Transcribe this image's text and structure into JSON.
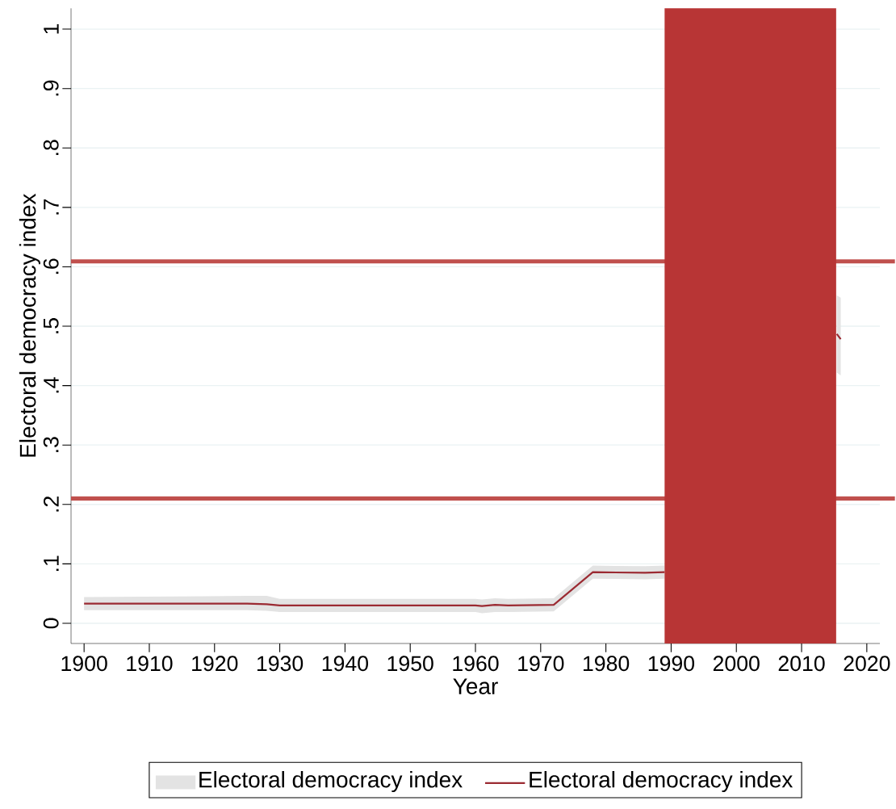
{
  "chart_data": {
    "type": "line",
    "xlabel": "Year",
    "ylabel": "Electoral democracy index",
    "x": [
      1900,
      1925,
      1928,
      1930,
      1960,
      1961,
      1963,
      1965,
      1972,
      1978,
      1986,
      1989,
      1990,
      2015.4,
      2016
    ],
    "series": [
      {
        "name": "Electoral democracy index",
        "color": "#9b2a32",
        "values": [
          0.033,
          0.033,
          0.032,
          0.03,
          0.03,
          0.029,
          0.031,
          0.03,
          0.031,
          0.086,
          0.085,
          0.086,
          null,
          0.487,
          0.478
        ],
        "lower": [
          0.022,
          0.022,
          0.021,
          0.019,
          0.019,
          0.017,
          0.019,
          0.019,
          0.02,
          0.075,
          0.074,
          0.075,
          null,
          0.422,
          0.417
        ],
        "upper": [
          0.044,
          0.046,
          0.046,
          0.041,
          0.041,
          0.04,
          0.042,
          0.041,
          0.042,
          0.097,
          0.096,
          0.097,
          null,
          0.552,
          0.548
        ]
      }
    ],
    "xlim": [
      1898,
      2022
    ],
    "ylim": [
      -0.034,
      1.035
    ],
    "xticks": [
      1900,
      1910,
      1920,
      1930,
      1940,
      1950,
      1960,
      1970,
      1980,
      1990,
      2000,
      2010,
      2020
    ],
    "yticks": [
      0,
      {
        "value": 0.1,
        "label": ".1"
      },
      {
        "value": 0.2,
        "label": ".2"
      },
      {
        "value": 0.3,
        "label": ".3"
      },
      {
        "value": 0.4,
        "label": ".4"
      },
      {
        "value": 0.5,
        "label": ".5"
      },
      {
        "value": 0.6,
        "label": ".6"
      },
      {
        "value": 0.7,
        "label": ".7"
      },
      {
        "value": 0.8,
        "label": ".8"
      },
      {
        "value": 0.9,
        "label": ".9"
      },
      1
    ],
    "ref_lines": [
      {
        "axis": "y",
        "value": 0.609,
        "color": "#c0504d"
      },
      {
        "axis": "y",
        "value": 0.21,
        "color": "#c0504d"
      }
    ],
    "bands": [
      {
        "axis": "x",
        "from": 1989,
        "to": 2015.3,
        "color": "#b83535"
      }
    ],
    "grid": "y",
    "legend": "bottom"
  }
}
